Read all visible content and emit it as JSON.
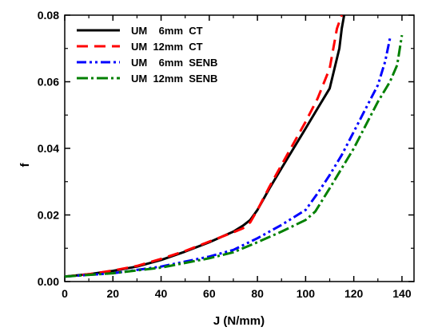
{
  "chart_data": {
    "type": "line",
    "xlabel": "J (N/mm)",
    "ylabel": "f",
    "xlim": [
      0,
      145
    ],
    "ylim": [
      0,
      0.08
    ],
    "x_ticks": [
      "0",
      "20",
      "40",
      "60",
      "80",
      "100",
      "120",
      "140"
    ],
    "y_ticks": [
      "0.00",
      "0.02",
      "0.04",
      "0.06",
      "0.08"
    ],
    "grid": false,
    "legend_position": "top-left",
    "series": [
      {
        "name": "UM    6mm  CT",
        "color": "#000000",
        "dash": "solid",
        "points": [
          [
            0,
            0.0015
          ],
          [
            10,
            0.0022
          ],
          [
            20,
            0.0032
          ],
          [
            30,
            0.0045
          ],
          [
            40,
            0.0065
          ],
          [
            50,
            0.009
          ],
          [
            60,
            0.0118
          ],
          [
            70,
            0.015
          ],
          [
            74,
            0.0168
          ],
          [
            77,
            0.0185
          ],
          [
            80,
            0.0215
          ],
          [
            85,
            0.028
          ],
          [
            90,
            0.034
          ],
          [
            95,
            0.04
          ],
          [
            100,
            0.046
          ],
          [
            105,
            0.052
          ],
          [
            110,
            0.058
          ],
          [
            114,
            0.07
          ],
          [
            115,
            0.076
          ],
          [
            116,
            0.08
          ]
        ]
      },
      {
        "name": "UM  12mm  CT",
        "color": "#ff0000",
        "dash": "14,8",
        "points": [
          [
            0,
            0.0015
          ],
          [
            10,
            0.0022
          ],
          [
            20,
            0.0033
          ],
          [
            30,
            0.0047
          ],
          [
            40,
            0.0068
          ],
          [
            50,
            0.0092
          ],
          [
            60,
            0.012
          ],
          [
            70,
            0.0148
          ],
          [
            74,
            0.016
          ],
          [
            77,
            0.0178
          ],
          [
            80,
            0.0215
          ],
          [
            85,
            0.0285
          ],
          [
            90,
            0.035
          ],
          [
            95,
            0.0415
          ],
          [
            100,
            0.048
          ],
          [
            105,
            0.055
          ],
          [
            110,
            0.064
          ],
          [
            113,
            0.076
          ],
          [
            115,
            0.08
          ]
        ]
      },
      {
        "name": "UM    6mm  SENB",
        "color": "#0000ff",
        "dash": "12,4,3,4,3,4",
        "points": [
          [
            0,
            0.0015
          ],
          [
            20,
            0.0025
          ],
          [
            40,
            0.0045
          ],
          [
            60,
            0.0075
          ],
          [
            70,
            0.0095
          ],
          [
            80,
            0.013
          ],
          [
            90,
            0.017
          ],
          [
            100,
            0.0215
          ],
          [
            105,
            0.0265
          ],
          [
            110,
            0.032
          ],
          [
            115,
            0.038
          ],
          [
            120,
            0.045
          ],
          [
            125,
            0.052
          ],
          [
            130,
            0.059
          ],
          [
            133,
            0.066
          ],
          [
            135,
            0.073
          ]
        ]
      },
      {
        "name": "UM  12mm  SENB",
        "color": "#008000",
        "dash": "14,4,3,4",
        "points": [
          [
            0,
            0.0015
          ],
          [
            20,
            0.0025
          ],
          [
            40,
            0.0042
          ],
          [
            60,
            0.007
          ],
          [
            70,
            0.0088
          ],
          [
            80,
            0.0118
          ],
          [
            90,
            0.015
          ],
          [
            100,
            0.0185
          ],
          [
            104,
            0.021
          ],
          [
            110,
            0.028
          ],
          [
            115,
            0.034
          ],
          [
            120,
            0.04
          ],
          [
            125,
            0.047
          ],
          [
            130,
            0.054
          ],
          [
            135,
            0.06
          ],
          [
            138,
            0.065
          ],
          [
            140,
            0.074
          ]
        ]
      }
    ]
  }
}
